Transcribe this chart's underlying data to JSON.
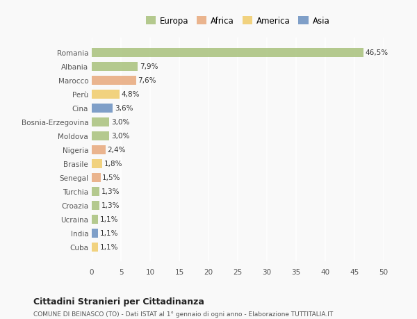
{
  "countries": [
    "Romania",
    "Albania",
    "Marocco",
    "Perù",
    "Cina",
    "Bosnia-Erzegovina",
    "Moldova",
    "Nigeria",
    "Brasile",
    "Senegal",
    "Turchia",
    "Croazia",
    "Ucraina",
    "India",
    "Cuba"
  ],
  "values": [
    46.5,
    7.9,
    7.6,
    4.8,
    3.6,
    3.0,
    3.0,
    2.4,
    1.8,
    1.5,
    1.3,
    1.3,
    1.1,
    1.1,
    1.1
  ],
  "labels": [
    "46,5%",
    "7,9%",
    "7,6%",
    "4,8%",
    "3,6%",
    "3,0%",
    "3,0%",
    "2,4%",
    "1,8%",
    "1,5%",
    "1,3%",
    "1,3%",
    "1,1%",
    "1,1%",
    "1,1%"
  ],
  "continents": [
    "Europa",
    "Europa",
    "Africa",
    "America",
    "Asia",
    "Europa",
    "Europa",
    "Africa",
    "America",
    "Africa",
    "Europa",
    "Europa",
    "Europa",
    "Asia",
    "America"
  ],
  "colors": {
    "Europa": "#a8c17c",
    "Africa": "#e8a87c",
    "America": "#f0cc6a",
    "Asia": "#6a8fc0"
  },
  "legend_colors": {
    "Europa": "#a8c17c",
    "Africa": "#e8a87c",
    "America": "#f0cc6a",
    "Asia": "#6a8fc0"
  },
  "xlim": [
    0,
    50
  ],
  "xticks": [
    0,
    5,
    10,
    15,
    20,
    25,
    30,
    35,
    40,
    45,
    50
  ],
  "title": "Cittadini Stranieri per Cittadinanza",
  "subtitle": "COMUNE DI BEINASCO (TO) - Dati ISTAT al 1° gennaio di ogni anno - Elaborazione TUTTITALIA.IT",
  "background_color": "#f9f9f9",
  "grid_color": "#ffffff",
  "bar_height": 0.65
}
